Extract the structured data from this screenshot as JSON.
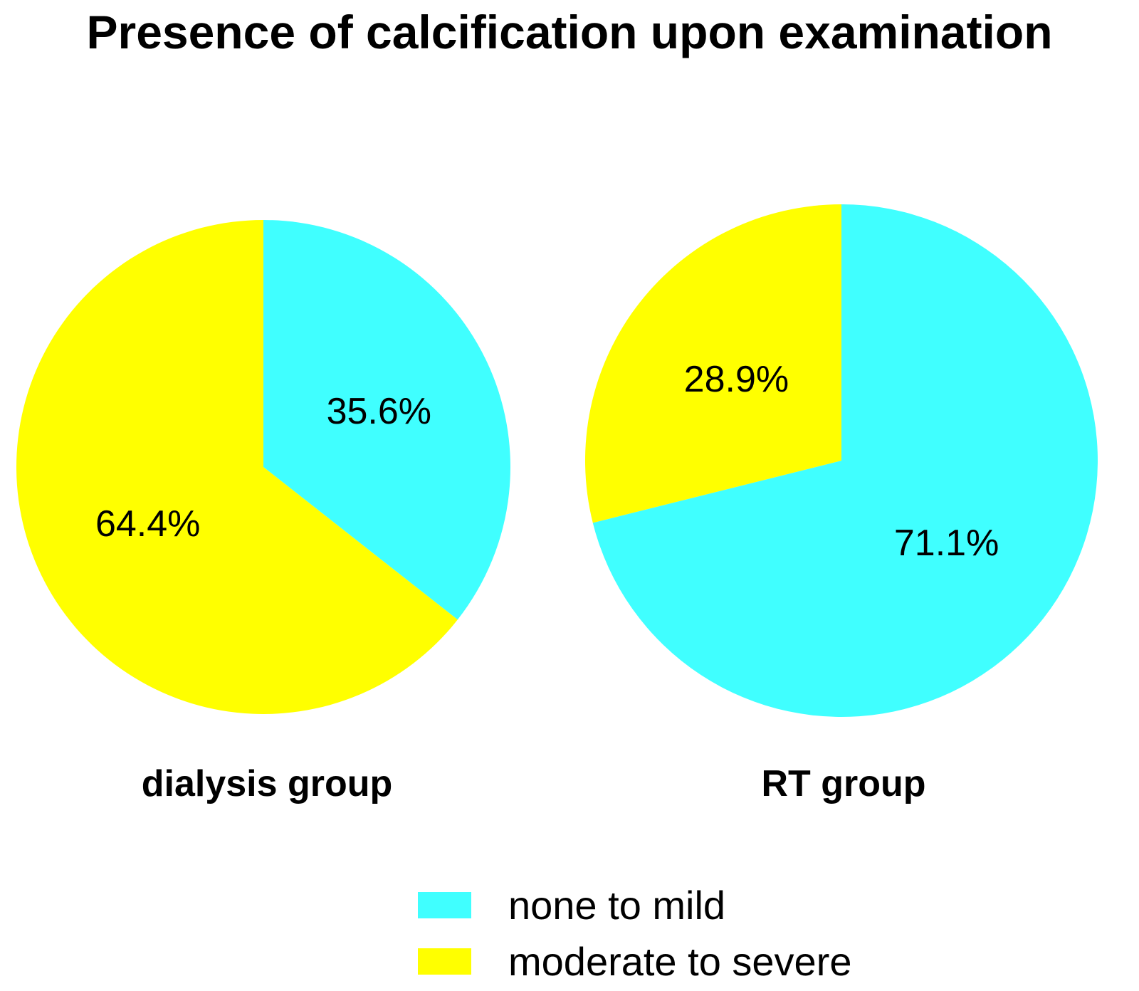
{
  "chart_data": {
    "type": "pie",
    "title": "Presence of calcification upon examination",
    "categories": [
      "none to mild",
      "moderate to severe"
    ],
    "colors": {
      "none to mild": "#40FFFF",
      "moderate to severe": "#FFFF00"
    },
    "legend_position": "bottom",
    "legend": [
      {
        "label": "none to mild",
        "color": "#40FFFF"
      },
      {
        "label": "moderate to severe",
        "color": "#FFFF00"
      }
    ],
    "pies": [
      {
        "group": "dialysis group",
        "slices": [
          {
            "category": "none to mild",
            "value": 35.6,
            "label": "35.6%"
          },
          {
            "category": "moderate to severe",
            "value": 64.4,
            "label": "64.4%"
          }
        ]
      },
      {
        "group": "RT group",
        "slices": [
          {
            "category": "none to mild",
            "value": 71.1,
            "label": "71.1%"
          },
          {
            "category": "moderate to severe",
            "value": 28.9,
            "label": "28.9%"
          }
        ]
      }
    ]
  }
}
